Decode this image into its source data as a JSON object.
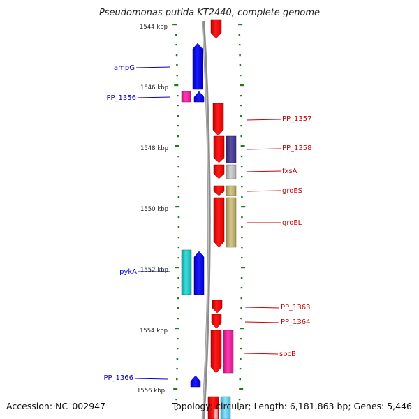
{
  "title": "Pseudomonas putida KT2440, complete genome",
  "accession": "Accession: NC_002947",
  "topology": "Topology: circular; Length: 6,181,863 bp; Genes: 5,446",
  "colors": {
    "backbone": "#888888",
    "tick": "#1e7a1e",
    "minus_label": "#0000cc",
    "plus_label": "#cc0000"
  },
  "scale_labels": [
    "1544 kbp",
    "1546 kbp",
    "1548 kbp",
    "1550 kbp",
    "1552 kbp",
    "1554 kbp",
    "1556 kbp"
  ],
  "minus_labels": [
    "ampG",
    "PP_1356",
    "pykA",
    "PP_1366"
  ],
  "plus_labels": [
    "PP_1357",
    "PP_1358",
    "fxsA",
    "groES",
    "groEL",
    "PP_1363",
    "PP_1364",
    "sbcB"
  ],
  "feature_colors": {
    "red": "#ff1010",
    "blue": "#0a0aff",
    "magenta": "#ff2aa8",
    "navy": "#4a3d8f",
    "gray": "#b8b8b8",
    "olive": "#bdb171",
    "cyan": "#1cc8c8",
    "lightblue": "#66ccee",
    "pink": "#ff9999"
  }
}
